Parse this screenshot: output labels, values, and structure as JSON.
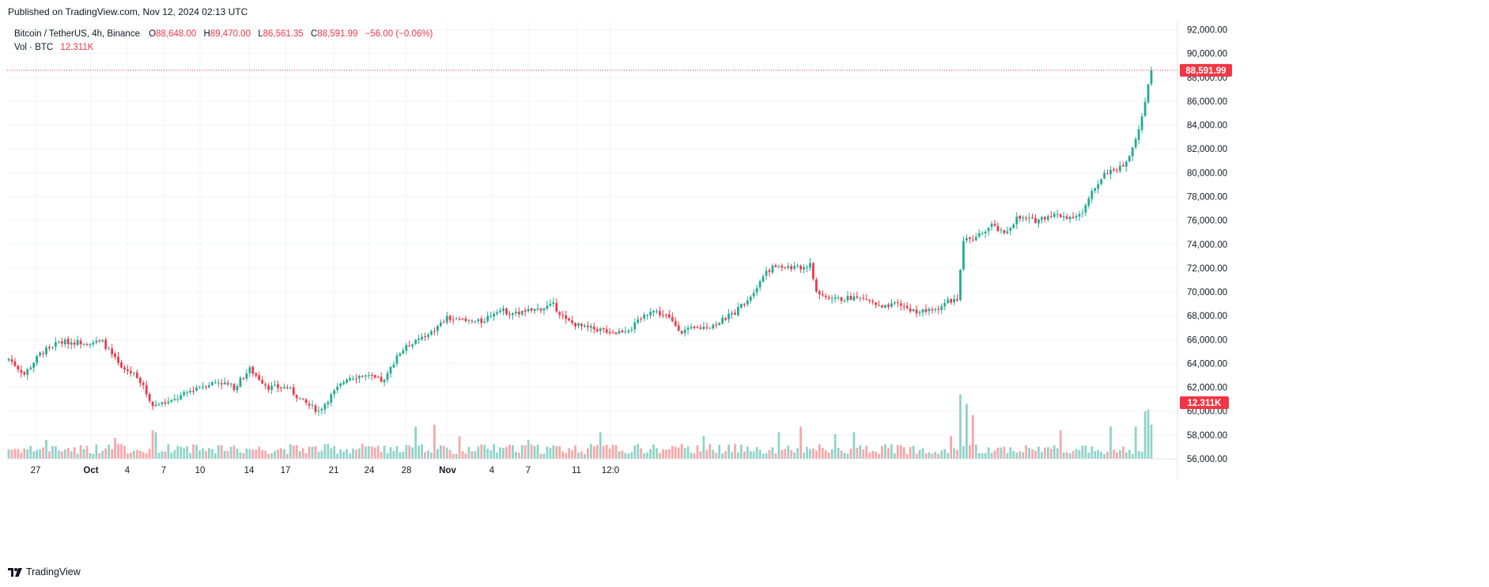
{
  "header": {
    "published": "Published on TradingView.com, Nov 12, 2024 02:13 UTC"
  },
  "legend": {
    "symbol": "Bitcoin / TetherUS, 4h, Binance",
    "o_label": "O",
    "o_value": "88,648.00",
    "h_label": "H",
    "h_value": "89,470.00",
    "l_label": "L",
    "l_value": "86,561.35",
    "c_label": "C",
    "c_value": "88,591.99",
    "change": "−56.00 (−0.06%)",
    "vol_label": "Vol · BTC",
    "vol_value": "12.311K"
  },
  "footer": {
    "brand": "TradingView"
  },
  "colors": {
    "up": "#22ab94",
    "down": "#f23645",
    "vol_up": "#8fd3c9",
    "vol_down": "#f7a7a9",
    "grid": "#f0f3fa",
    "axis_text": "#131722",
    "price_line": "#f23645"
  },
  "chart_data": {
    "type": "candlestick",
    "title": "Bitcoin / TetherUS, 4h, Binance",
    "timeframe": "4h",
    "y_ticks": [
      "56,000.00",
      "58,000.00",
      "60,000.00",
      "62,000.00",
      "64,000.00",
      "66,000.00",
      "68,000.00",
      "70,000.00",
      "72,000.00",
      "74,000.00",
      "76,000.00",
      "78,000.00",
      "80,000.00",
      "82,000.00",
      "84,000.00",
      "86,000.00",
      "88,000.00",
      "90,000.00",
      "92,000.00"
    ],
    "ylim": [
      56000,
      92700
    ],
    "x_ticks": [
      "27",
      "Oct",
      "4",
      "7",
      "10",
      "14",
      "17",
      "21",
      "24",
      "28",
      "Nov",
      "4",
      "7",
      "11",
      "12:0"
    ],
    "last_price": 88591.99,
    "last_price_label": "88,591.99",
    "last_volume_label": "12.311K",
    "anchors": [
      {
        "i": 0,
        "p": 64400
      },
      {
        "i": 5,
        "p": 63100
      },
      {
        "i": 10,
        "p": 64800
      },
      {
        "i": 16,
        "p": 65800
      },
      {
        "i": 24,
        "p": 65800
      },
      {
        "i": 30,
        "p": 65800
      },
      {
        "i": 36,
        "p": 63600
      },
      {
        "i": 41,
        "p": 63000
      },
      {
        "i": 46,
        "p": 60500
      },
      {
        "i": 52,
        "p": 60800
      },
      {
        "i": 60,
        "p": 62000
      },
      {
        "i": 67,
        "p": 62500
      },
      {
        "i": 72,
        "p": 62000
      },
      {
        "i": 77,
        "p": 63500
      },
      {
        "i": 83,
        "p": 62000
      },
      {
        "i": 89,
        "p": 62000
      },
      {
        "i": 94,
        "p": 60800
      },
      {
        "i": 99,
        "p": 60000
      },
      {
        "i": 103,
        "p": 61300
      },
      {
        "i": 108,
        "p": 62800
      },
      {
        "i": 113,
        "p": 63000
      },
      {
        "i": 120,
        "p": 62500
      },
      {
        "i": 124,
        "p": 64700
      },
      {
        "i": 130,
        "p": 66000
      },
      {
        "i": 134,
        "p": 66300
      },
      {
        "i": 140,
        "p": 67800
      },
      {
        "i": 146,
        "p": 67500
      },
      {
        "i": 151,
        "p": 67500
      },
      {
        "i": 156,
        "p": 68500
      },
      {
        "i": 162,
        "p": 68200
      },
      {
        "i": 168,
        "p": 68500
      },
      {
        "i": 174,
        "p": 68900
      },
      {
        "i": 178,
        "p": 67600
      },
      {
        "i": 184,
        "p": 67000
      },
      {
        "i": 190,
        "p": 66800
      },
      {
        "i": 194,
        "p": 66600
      },
      {
        "i": 199,
        "p": 67000
      },
      {
        "i": 205,
        "p": 68500
      },
      {
        "i": 210,
        "p": 68000
      },
      {
        "i": 215,
        "p": 66700
      },
      {
        "i": 221,
        "p": 67000
      },
      {
        "i": 226,
        "p": 67300
      },
      {
        "i": 232,
        "p": 68300
      },
      {
        "i": 237,
        "p": 69700
      },
      {
        "i": 242,
        "p": 71800
      },
      {
        "i": 246,
        "p": 72200
      },
      {
        "i": 252,
        "p": 72000
      },
      {
        "i": 256,
        "p": 72300
      },
      {
        "i": 258,
        "p": 70000
      },
      {
        "i": 263,
        "p": 69300
      },
      {
        "i": 269,
        "p": 69500
      },
      {
        "i": 274,
        "p": 69400
      },
      {
        "i": 279,
        "p": 68600
      },
      {
        "i": 284,
        "p": 69000
      },
      {
        "i": 289,
        "p": 68400
      },
      {
        "i": 295,
        "p": 68400
      },
      {
        "i": 300,
        "p": 69200
      },
      {
        "i": 303,
        "p": 69500
      },
      {
        "i": 305,
        "p": 74300
      },
      {
        "i": 309,
        "p": 74500
      },
      {
        "i": 314,
        "p": 75600
      },
      {
        "i": 318,
        "p": 74800
      },
      {
        "i": 322,
        "p": 76200
      },
      {
        "i": 328,
        "p": 76000
      },
      {
        "i": 333,
        "p": 76500
      },
      {
        "i": 339,
        "p": 76300
      },
      {
        "i": 343,
        "p": 76600
      },
      {
        "i": 346,
        "p": 78300
      },
      {
        "i": 350,
        "p": 80000
      },
      {
        "i": 355,
        "p": 80500
      },
      {
        "i": 358,
        "p": 81200
      },
      {
        "i": 361,
        "p": 83800
      },
      {
        "i": 363,
        "p": 86000
      },
      {
        "i": 365,
        "p": 88600
      }
    ],
    "volume_spikes": [
      {
        "i": 12,
        "v": 1.0
      },
      {
        "i": 34,
        "v": 1.1
      },
      {
        "i": 46,
        "v": 1.5
      },
      {
        "i": 47,
        "v": 1.4
      },
      {
        "i": 72,
        "v": 0.7
      },
      {
        "i": 113,
        "v": 0.8
      },
      {
        "i": 130,
        "v": 1.7
      },
      {
        "i": 136,
        "v": 1.8
      },
      {
        "i": 144,
        "v": 1.2
      },
      {
        "i": 166,
        "v": 1.0
      },
      {
        "i": 189,
        "v": 1.4
      },
      {
        "i": 222,
        "v": 1.2
      },
      {
        "i": 246,
        "v": 1.4
      },
      {
        "i": 253,
        "v": 1.7
      },
      {
        "i": 264,
        "v": 1.3
      },
      {
        "i": 270,
        "v": 1.4
      },
      {
        "i": 301,
        "v": 1.2
      },
      {
        "i": 304,
        "v": 3.4
      },
      {
        "i": 306,
        "v": 2.9
      },
      {
        "i": 308,
        "v": 2.3
      },
      {
        "i": 336,
        "v": 1.5
      },
      {
        "i": 352,
        "v": 1.7
      },
      {
        "i": 360,
        "v": 1.7
      },
      {
        "i": 363,
        "v": 2.5
      },
      {
        "i": 364,
        "v": 2.6
      },
      {
        "i": 365,
        "v": 1.8
      }
    ]
  }
}
